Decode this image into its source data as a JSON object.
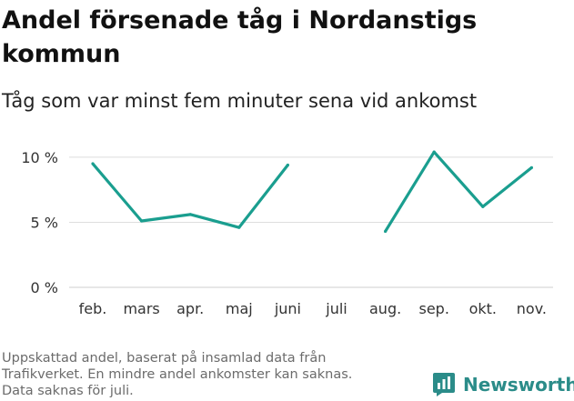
{
  "title": "Andel försenade tåg i Nordanstigs kommun",
  "subtitle": "Tåg som var minst fem minuter sena vid ankomst",
  "footer_lines": [
    "Uppskattad andel, baserat på insamlad data från",
    "Trafikverket. En mindre andel ankomster kan saknas.",
    "Data saknas för juli."
  ],
  "brand": {
    "name": "Newsworthy",
    "icon": "newsworthy-logo-icon",
    "color": "#2b8c89"
  },
  "chart_data": {
    "type": "line",
    "categories": [
      "feb.",
      "mars",
      "apr.",
      "maj",
      "juni",
      "juli",
      "aug.",
      "sep.",
      "okt.",
      "nov."
    ],
    "series": [
      {
        "values": [
          9.5,
          5.1,
          5.6,
          4.6,
          9.4,
          null,
          4.3,
          10.4,
          6.2,
          9.2
        ],
        "color": "#1a9e8f"
      }
    ],
    "yticks": [
      {
        "value": 0,
        "label": "0 %"
      },
      {
        "value": 5,
        "label": "5 %"
      },
      {
        "value": 10,
        "label": "10 %"
      }
    ],
    "ylim": [
      0,
      10.9
    ],
    "grid": true,
    "xlabel": "",
    "ylabel": ""
  }
}
